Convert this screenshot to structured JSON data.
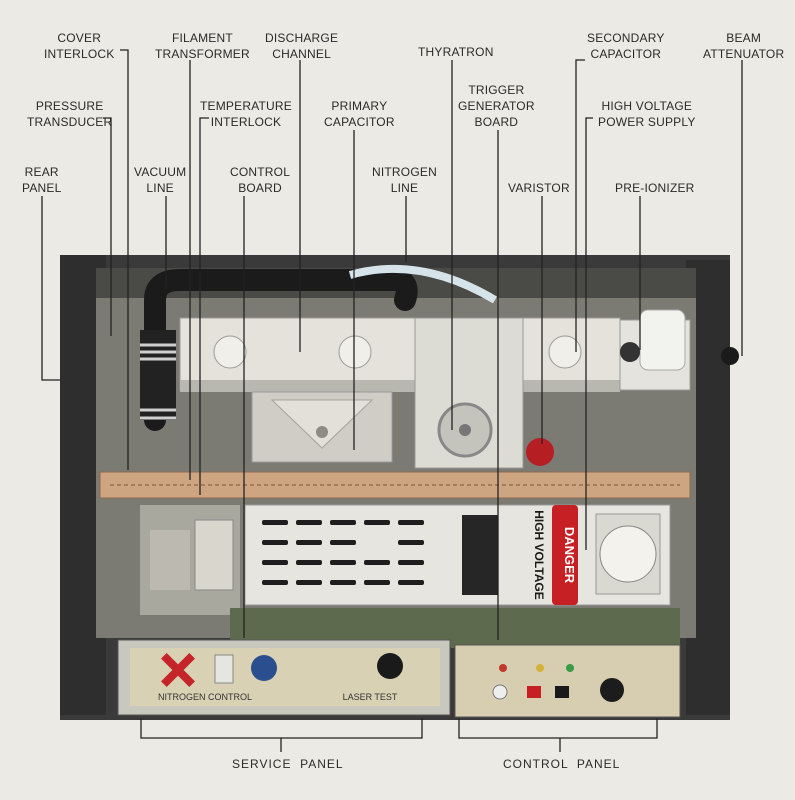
{
  "labels": {
    "cover_interlock": [
      "COVER",
      "INTERLOCK"
    ],
    "filament_transformer": [
      "FILAMENT",
      "TRANSFORMER"
    ],
    "discharge_channel": [
      "DISCHARGE",
      "CHANNEL"
    ],
    "thyratron": [
      "THYRATRON"
    ],
    "secondary_capacitor": [
      "SECONDARY",
      "CAPACITOR"
    ],
    "beam_attenuator": [
      "BEAM",
      "ATTENUATOR"
    ],
    "pressure_transducer": [
      "PRESSURE",
      "TRANSDUCER"
    ],
    "temperature_interlock": [
      "TEMPERATURE",
      "INTERLOCK"
    ],
    "primary_capacitor": [
      "PRIMARY",
      "CAPACITOR"
    ],
    "trigger_generator_board": [
      "TRIGGER",
      "GENERATOR",
      "BOARD"
    ],
    "high_voltage_power_supply": [
      "HIGH VOLTAGE",
      "POWER SUPPLY"
    ],
    "rear_panel": [
      "REAR",
      "PANEL"
    ],
    "vacuum_line": [
      "VACUUM",
      "LINE"
    ],
    "control_board": [
      "CONTROL",
      "BOARD"
    ],
    "nitrogen_line": [
      "NITROGEN",
      "LINE"
    ],
    "varistor": [
      "VARISTOR"
    ],
    "pre_ionizer": [
      "PRE-IONIZER"
    ],
    "service_panel": [
      "SERVICE  PANEL"
    ],
    "control_panel": [
      "CONTROL  PANEL"
    ]
  },
  "device_text": {
    "danger": "DANGER",
    "high_voltage": "HIGH VOLTAGE",
    "service_title": "NITROGEN CONTROL",
    "laser_test": "LASER TEST"
  },
  "colors": {
    "background": "#ebeae4",
    "chassis": "#2b2b2b",
    "danger_red": "#c62024",
    "panel_tan": "#d6c9a6",
    "leader": "#222222"
  }
}
